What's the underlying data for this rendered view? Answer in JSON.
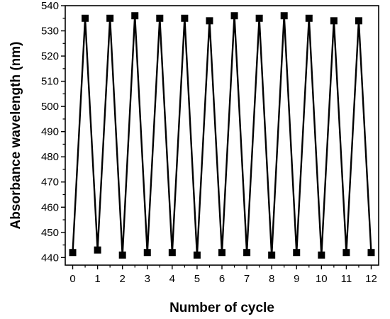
{
  "chart_data": {
    "type": "line",
    "title": "",
    "xlabel": "Number of cycle",
    "ylabel": "Absorbance wavelength (nm)",
    "xlim": [
      -0.3,
      12.3
    ],
    "ylim": [
      437,
      540
    ],
    "xticks": [
      0,
      1,
      2,
      3,
      4,
      5,
      6,
      7,
      8,
      9,
      10,
      11,
      12
    ],
    "yticks": [
      440,
      450,
      460,
      470,
      480,
      490,
      500,
      510,
      520,
      530,
      540
    ],
    "grid": false,
    "legend": "none",
    "marker": "square",
    "line_color": "#000000",
    "x": [
      0,
      0.5,
      1,
      1.5,
      2,
      2.5,
      3,
      3.5,
      4,
      4.5,
      5,
      5.5,
      6,
      6.5,
      7,
      7.5,
      8,
      8.5,
      9,
      9.5,
      10,
      10.5,
      11,
      11.5,
      12
    ],
    "y": [
      442,
      535,
      443,
      535,
      441,
      536,
      442,
      535,
      442,
      535,
      441,
      534,
      442,
      536,
      442,
      535,
      441,
      536,
      442,
      535,
      441,
      534,
      442,
      534,
      442
    ]
  }
}
